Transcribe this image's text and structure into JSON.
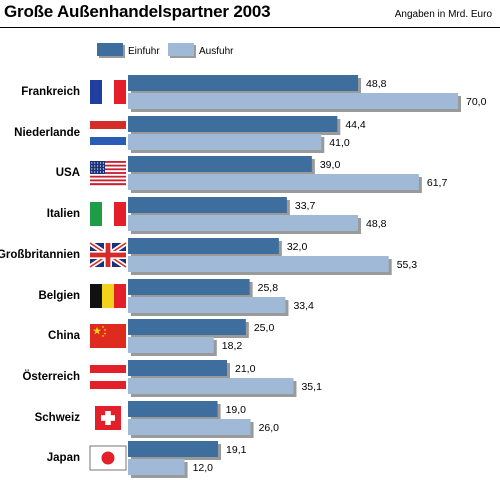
{
  "title": "Große Außenhandelspartner 2003",
  "unit_note": "Angaben in Mrd. Euro",
  "colors": {
    "einfuhr": "#3e6e9e",
    "ausfuhr": "#9fb9d6",
    "shadow": "#9a9a9a"
  },
  "chart_data": {
    "type": "bar",
    "orientation": "horizontal",
    "title": "Große Außenhandelspartner 2003",
    "unit": "Angaben in Mrd. Euro",
    "legend_position": "top",
    "xlim": [
      0,
      70
    ],
    "categories": [
      "Frankreich",
      "Niederlande",
      "USA",
      "Italien",
      "Großbritannien",
      "Belgien",
      "China",
      "Österreich",
      "Schweiz",
      "Japan"
    ],
    "series": [
      {
        "name": "Einfuhr",
        "values": [
          48.8,
          44.4,
          39.0,
          33.7,
          32.0,
          25.8,
          25.0,
          21.0,
          19.0,
          19.1
        ],
        "labels": [
          "48,8",
          "44,4",
          "39,0",
          "33,7",
          "32,0",
          "25,8",
          "25,0",
          "21,0",
          "19,0",
          "19,1"
        ]
      },
      {
        "name": "Ausfuhr",
        "values": [
          70.0,
          41.0,
          61.7,
          48.8,
          55.3,
          33.4,
          18.2,
          35.1,
          26.0,
          12.0
        ],
        "labels": [
          "70,0",
          "41,0",
          "61,7",
          "48,8",
          "55,3",
          "33,4",
          "18,2",
          "35,1",
          "26,0",
          "12,0"
        ]
      }
    ],
    "flags": [
      "flag-france-icon",
      "flag-netherlands-icon",
      "flag-usa-icon",
      "flag-italy-icon",
      "flag-uk-icon",
      "flag-belgium-icon",
      "flag-china-icon",
      "flag-austria-icon",
      "flag-switzerland-icon",
      "flag-japan-icon"
    ],
    "grid": false
  }
}
